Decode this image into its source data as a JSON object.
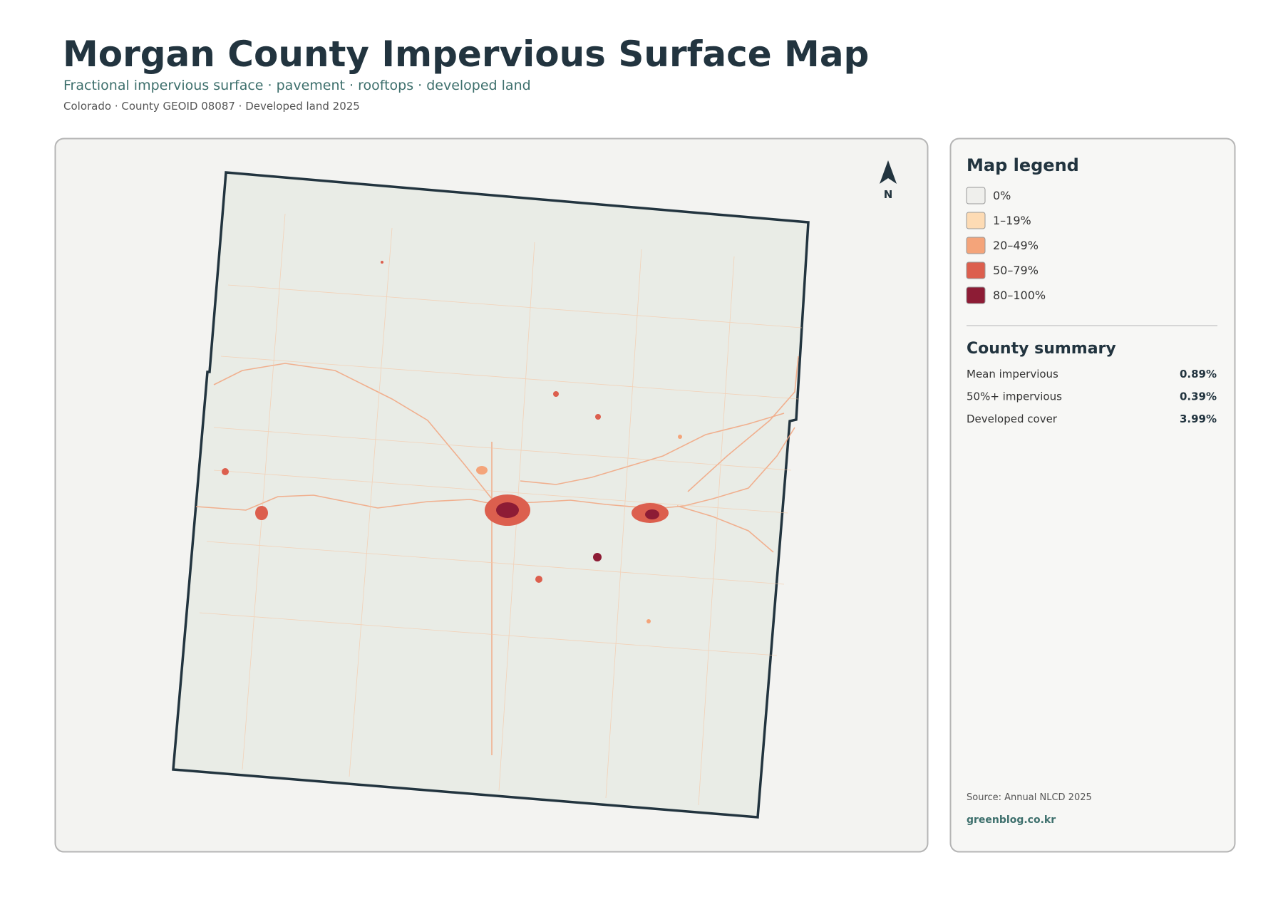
{
  "header": {
    "title": "Morgan County Impervious Surface Map",
    "subtitle": "Fractional impervious surface · pavement · rooftops · developed land",
    "meta": "Colorado · County GEOID 08087 · Developed land 2025"
  },
  "map": {
    "north_label": "N"
  },
  "legend": {
    "title": "Map legend",
    "items": [
      {
        "label": "0%",
        "color": "#efefec"
      },
      {
        "label": "1–19%",
        "color": "#fddbb4"
      },
      {
        "label": "20–49%",
        "color": "#f4a47a"
      },
      {
        "label": "50–79%",
        "color": "#dc5f4e"
      },
      {
        "label": "80–100%",
        "color": "#8d1c35"
      }
    ]
  },
  "summary": {
    "title": "County summary",
    "rows": [
      {
        "label": "Mean impervious",
        "value": "0.89%"
      },
      {
        "label": "50%+ impervious",
        "value": "0.39%"
      },
      {
        "label": "Developed cover",
        "value": "3.99%"
      }
    ]
  },
  "footer": {
    "source": "Source: Annual NLCD 2025",
    "site": "greenblog.co.kr"
  }
}
